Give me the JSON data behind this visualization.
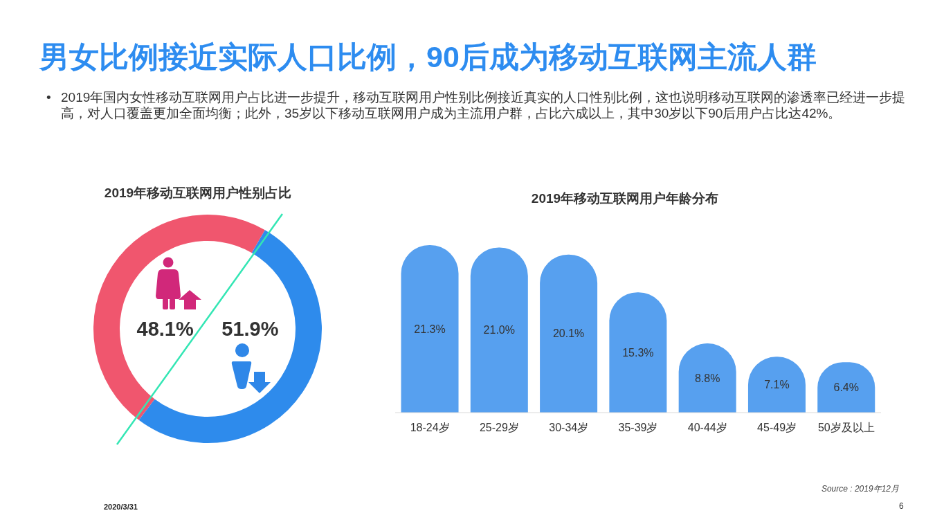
{
  "chart_data": [
    {
      "type": "other",
      "title": "男女比例接近实际人口比例，90后成为移动互联网主流人群",
      "subtitle": "• 2019年国内女性移动互联网用户占比进一步提升，移动互联网用户性别比例接近真实的人口性别比例，这也说明移动互联网的渗透率已经进一步提高，对人口覆盖更加全面均衡；此外，35岁以下移动互联网用户成为主流用户群，占比六成以上，其中30岁以下90后用户占比达42%。",
      "annotations": [
        "Source : 2019年12月",
        "2020/3/31",
        "6"
      ]
    },
    {
      "type": "donut",
      "title": "2019年移动互联网用户性别占比",
      "categories": [
        null,
        null
      ],
      "values": [
        48.1,
        51.9
      ],
      "colors": [
        "#f0566e",
        "#2e8bec"
      ],
      "value_labels": [
        "48.1%",
        "51.9%"
      ]
    },
    {
      "type": "bar",
      "title": "2019年移动互联网用户年龄分布",
      "categories": [
        "18-24岁",
        "25-29岁",
        "30-34岁",
        "35-39岁",
        "40-44岁",
        "45-49岁",
        "50岁及以上"
      ],
      "values": [
        21.3,
        21.0,
        20.1,
        15.3,
        8.8,
        7.1,
        6.4
      ],
      "color": "#57a0ef",
      "value_labels": [
        "21.3%",
        "21.0%",
        "20.1%",
        "15.3%",
        "8.8%",
        "7.1%",
        "6.4%"
      ]
    }
  ]
}
